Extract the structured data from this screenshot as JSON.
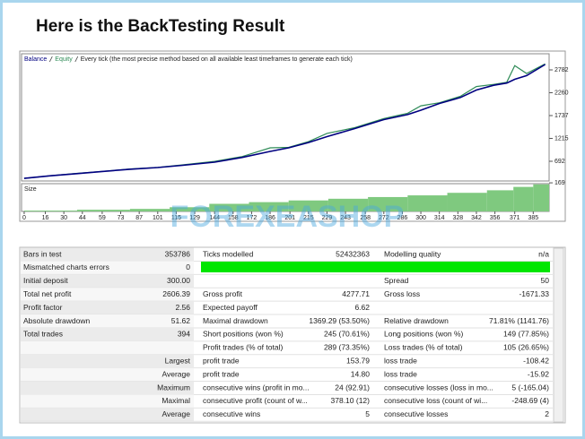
{
  "title": "Here is the BackTesting Result",
  "watermark": "FOREXEASHOP",
  "chart_data": [
    {
      "type": "line",
      "subtitle": "Every tick (the most precise method based on all available least timeframes to generate each tick)",
      "x": [
        0,
        20,
        40,
        60,
        80,
        101,
        120,
        144,
        165,
        186,
        200,
        215,
        229,
        250,
        272,
        290,
        300,
        314,
        330,
        342,
        355,
        365,
        371,
        380,
        394
      ],
      "series": [
        {
          "name": "Balance",
          "color": "#000080",
          "values": [
            300,
            360,
            410,
            460,
            510,
            548,
            600,
            672,
            780,
            918,
            1000,
            1120,
            1256,
            1440,
            1645,
            1760,
            1860,
            2014,
            2150,
            2321,
            2430,
            2480,
            2567,
            2650,
            2906
          ]
        },
        {
          "name": "Equity",
          "color": "#2e8b57",
          "values": [
            300,
            362,
            415,
            462,
            515,
            552,
            610,
            690,
            800,
            1000,
            1010,
            1140,
            1330,
            1460,
            1670,
            1790,
            1960,
            2030,
            2180,
            2400,
            2450,
            2500,
            2880,
            2700,
            2920
          ]
        }
      ],
      "xlim": [
        -2,
        397
      ],
      "xticks": [
        0,
        16,
        30,
        44,
        59,
        73,
        87,
        101,
        115,
        129,
        144,
        158,
        172,
        186,
        201,
        215,
        229,
        243,
        258,
        272,
        286,
        300,
        314,
        328,
        342,
        356,
        371,
        385
      ],
      "ylim": [
        241,
        3151
      ],
      "yticks": [
        692,
        1215,
        1737,
        2260,
        2782
      ]
    },
    {
      "type": "bar",
      "label": "Size",
      "color": "#7fc97f",
      "x": [
        0,
        40,
        80,
        110,
        140,
        170,
        200,
        230,
        260,
        290,
        320,
        350,
        370,
        385
      ],
      "values": [
        5,
        10,
        15,
        25,
        45,
        55,
        65,
        75,
        85,
        95,
        110,
        125,
        145,
        160
      ],
      "xlim": [
        -2,
        397
      ],
      "ylim": [
        0,
        180
      ],
      "yticks": [
        169
      ]
    }
  ],
  "table": {
    "rows": [
      [
        "Bars in test",
        "353786",
        "Ticks modelled",
        "52432363",
        "Modelling quality",
        "n/a"
      ],
      [
        "Mismatched charts errors",
        "0",
        null,
        null,
        null,
        null
      ],
      [
        "Initial deposit",
        "300.00",
        null,
        null,
        "Spread",
        "50"
      ],
      [
        "Total net profit",
        "2606.39",
        "Gross profit",
        "4277.71",
        "Gross loss",
        "-1671.33"
      ],
      [
        "Profit factor",
        "2.56",
        "Expected payoff",
        "6.62",
        null,
        null
      ],
      [
        "Absolute drawdown",
        "51.62",
        "Maximal drawdown",
        "1369.29 (53.50%)",
        "Relative drawdown",
        "71.81% (1141.76)"
      ],
      [
        "Total trades",
        "394",
        "Short positions (won %)",
        "245 (70.61%)",
        "Long positions (won %)",
        "149 (77.85%)"
      ],
      [
        null,
        null,
        "Profit trades (% of total)",
        "289 (73.35%)",
        "Loss trades (% of total)",
        "105 (26.65%)"
      ],
      [
        null,
        "Largest",
        "profit trade",
        "153.79",
        "loss trade",
        "-108.42"
      ],
      [
        null,
        "Average",
        "profit trade",
        "14.80",
        "loss trade",
        "-15.92"
      ],
      [
        null,
        "Maximum",
        "consecutive wins (profit in mo...",
        "24 (92.91)",
        "consecutive losses (loss in mo...",
        "5 (-165.04)"
      ],
      [
        null,
        "Maximal",
        "consecutive profit (count of w...",
        "378.10 (12)",
        "consecutive loss (count of wi...",
        "-248.69 (4)"
      ],
      [
        null,
        "Average",
        "consecutive wins",
        "5",
        "consecutive losses",
        "2"
      ]
    ]
  }
}
